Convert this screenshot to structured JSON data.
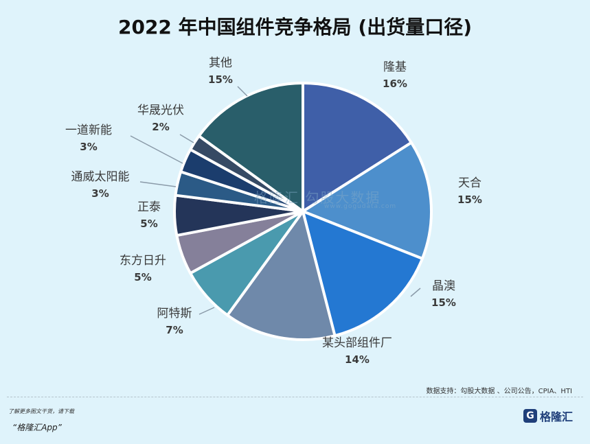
{
  "chart_data": {
    "type": "pie",
    "title": "2022 年中国组件竞争格局 (出货量口径)",
    "slices": [
      {
        "label": "隆基",
        "value": 16,
        "pct": "16%",
        "color": "#3f5fa8"
      },
      {
        "label": "天合",
        "value": 15,
        "pct": "15%",
        "color": "#4d8fcc"
      },
      {
        "label": "晶澳",
        "value": 15,
        "pct": "15%",
        "color": "#2478d2"
      },
      {
        "label": "某头部组件厂",
        "value": 14,
        "pct": "14%",
        "color": "#6f89aa"
      },
      {
        "label": "阿特斯",
        "value": 7,
        "pct": "7%",
        "color": "#4a9aae"
      },
      {
        "label": "东方日升",
        "value": 5,
        "pct": "5%",
        "color": "#85809a"
      },
      {
        "label": "正泰",
        "value": 5,
        "pct": "5%",
        "color": "#243559"
      },
      {
        "label": "通威太阳能",
        "value": 3,
        "pct": "3%",
        "color": "#2b5a86"
      },
      {
        "label": "一道新能",
        "value": 3,
        "pct": "3%",
        "color": "#1b3d6d"
      },
      {
        "label": "华晟光伏",
        "value": 2,
        "pct": "2%",
        "color": "#364a64"
      },
      {
        "label": "其他",
        "value": 15,
        "pct": "15%",
        "color": "#295e6a"
      }
    ]
  },
  "watermark": "格隆汇   勾股大数据",
  "watermark_url": "www.gogudata.com",
  "source": "数据支持：勾股大数据 、公司公告，CPIA、HTI",
  "footer": {
    "note": "了解更多图文干货，请下载",
    "app": "“格隆汇App”"
  },
  "brand": {
    "logo": "G",
    "name": "格隆汇"
  }
}
